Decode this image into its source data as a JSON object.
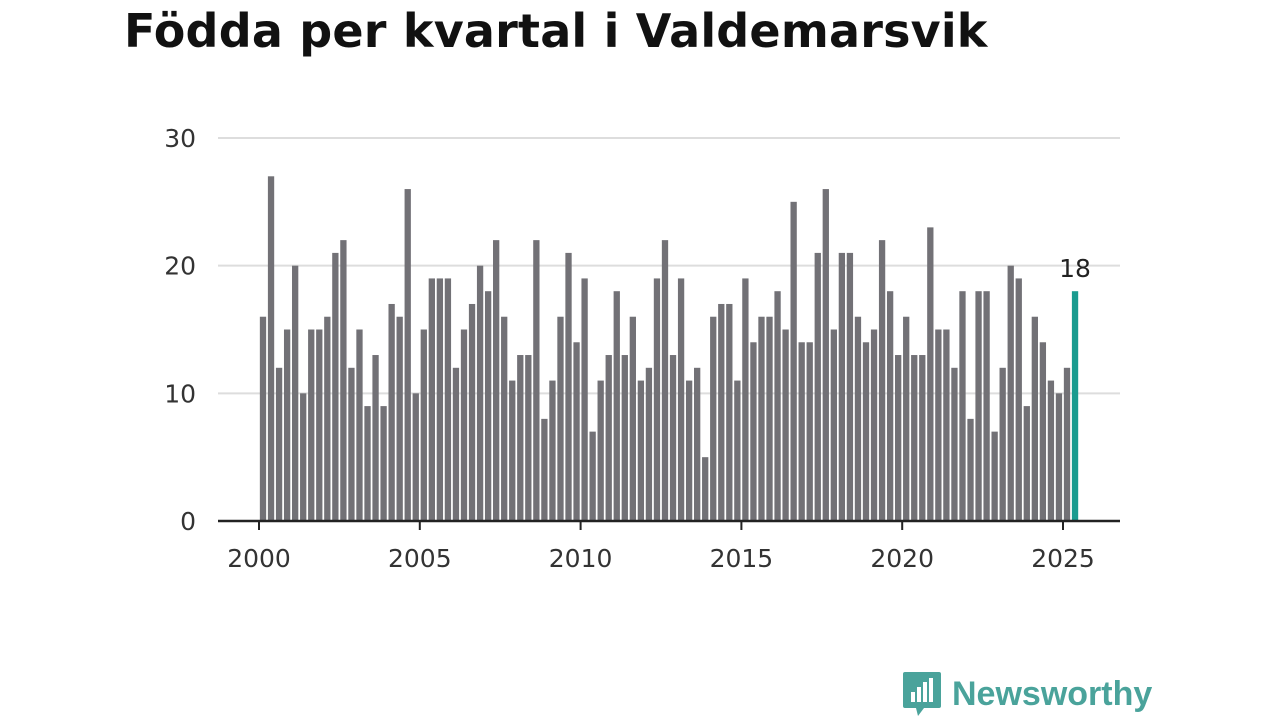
{
  "title": "Födda per kvartal i Valdemarsvik",
  "brand": {
    "name": "Newsworthy",
    "icon": "newsworthy-logo-icon",
    "color": "#4aa39b"
  },
  "colors": {
    "bar": "#727176",
    "highlight": "#1a9b8f",
    "grid": "#dddddd",
    "axis": "#222222"
  },
  "chart_data": {
    "type": "bar",
    "title": "Födda per kvartal i Valdemarsvik",
    "xlabel": "",
    "ylabel": "",
    "ylim": [
      0,
      30
    ],
    "yticks": [
      0,
      10,
      20,
      30
    ],
    "xticks": [
      "2000",
      "2005",
      "2010",
      "2015",
      "2020",
      "2025"
    ],
    "grid": true,
    "start": "2000 Q1",
    "end": "2025 Q2",
    "x": [
      "2000 Q1",
      "2000 Q2",
      "2000 Q3",
      "2000 Q4",
      "2001 Q1",
      "2001 Q2",
      "2001 Q3",
      "2001 Q4",
      "2002 Q1",
      "2002 Q2",
      "2002 Q3",
      "2002 Q4",
      "2003 Q1",
      "2003 Q2",
      "2003 Q3",
      "2003 Q4",
      "2004 Q1",
      "2004 Q2",
      "2004 Q3",
      "2004 Q4",
      "2005 Q1",
      "2005 Q2",
      "2005 Q3",
      "2005 Q4",
      "2006 Q1",
      "2006 Q2",
      "2006 Q3",
      "2006 Q4",
      "2007 Q1",
      "2007 Q2",
      "2007 Q3",
      "2007 Q4",
      "2008 Q1",
      "2008 Q2",
      "2008 Q3",
      "2008 Q4",
      "2009 Q1",
      "2009 Q2",
      "2009 Q3",
      "2009 Q4",
      "2010 Q1",
      "2010 Q2",
      "2010 Q3",
      "2010 Q4",
      "2011 Q1",
      "2011 Q2",
      "2011 Q3",
      "2011 Q4",
      "2012 Q1",
      "2012 Q2",
      "2012 Q3",
      "2012 Q4",
      "2013 Q1",
      "2013 Q2",
      "2013 Q3",
      "2013 Q4",
      "2014 Q1",
      "2014 Q2",
      "2014 Q3",
      "2014 Q4",
      "2015 Q1",
      "2015 Q2",
      "2015 Q3",
      "2015 Q4",
      "2016 Q1",
      "2016 Q2",
      "2016 Q3",
      "2016 Q4",
      "2017 Q1",
      "2017 Q2",
      "2017 Q3",
      "2017 Q4",
      "2018 Q1",
      "2018 Q2",
      "2018 Q3",
      "2018 Q4",
      "2019 Q1",
      "2019 Q2",
      "2019 Q3",
      "2019 Q4",
      "2020 Q1",
      "2020 Q2",
      "2020 Q3",
      "2020 Q4",
      "2021 Q1",
      "2021 Q2",
      "2021 Q3",
      "2021 Q4",
      "2022 Q1",
      "2022 Q2",
      "2022 Q3",
      "2022 Q4",
      "2023 Q1",
      "2023 Q2",
      "2023 Q3",
      "2023 Q4",
      "2024 Q1",
      "2024 Q2",
      "2024 Q3",
      "2024 Q4",
      "2025 Q1",
      "2025 Q2"
    ],
    "values": [
      16,
      27,
      12,
      15,
      20,
      10,
      15,
      15,
      16,
      21,
      22,
      12,
      15,
      9,
      13,
      9,
      17,
      16,
      26,
      10,
      15,
      19,
      19,
      19,
      12,
      15,
      17,
      20,
      18,
      22,
      16,
      11,
      13,
      13,
      22,
      8,
      11,
      16,
      21,
      14,
      19,
      7,
      11,
      13,
      18,
      13,
      16,
      11,
      12,
      19,
      22,
      13,
      19,
      11,
      12,
      5,
      16,
      17,
      17,
      11,
      19,
      14,
      16,
      16,
      18,
      15,
      25,
      14,
      14,
      21,
      26,
      15,
      21,
      21,
      16,
      14,
      15,
      22,
      18,
      13,
      16,
      13,
      13,
      23,
      15,
      15,
      12,
      18,
      8,
      18,
      18,
      7,
      12,
      20,
      19,
      9,
      16,
      14,
      11,
      10,
      12,
      18
    ],
    "highlight": {
      "index": 101,
      "label": "18"
    }
  }
}
